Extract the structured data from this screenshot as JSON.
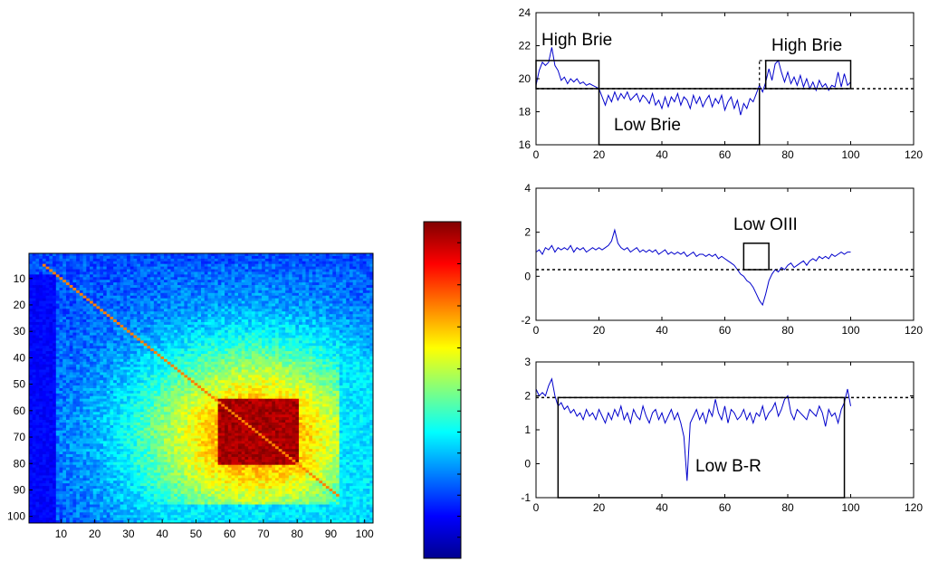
{
  "chart_data": [
    {
      "id": "heatmap",
      "type": "heatmap",
      "x_ticks": [
        10,
        20,
        30,
        40,
        50,
        60,
        70,
        80,
        90,
        100
      ],
      "y_ticks": [
        10,
        20,
        30,
        40,
        50,
        60,
        70,
        80,
        90,
        100
      ],
      "xlim": [
        1,
        102
      ],
      "ylim": [
        1,
        102
      ],
      "colormap": "jet",
      "colorbar": true,
      "hot_block": {
        "x": [
          57,
          80
        ],
        "y": [
          56,
          80
        ]
      },
      "low_band_columns": [
        1,
        8
      ]
    },
    {
      "id": "brie",
      "type": "line",
      "xlim": [
        0,
        120
      ],
      "ylim": [
        16,
        24
      ],
      "x_ticks": [
        0,
        20,
        40,
        60,
        80,
        100,
        120
      ],
      "y_ticks": [
        16,
        18,
        20,
        22,
        24
      ],
      "series_color": "#0000cc",
      "baseline": 19.4,
      "x": [
        0,
        1,
        2,
        3,
        4,
        5,
        6,
        7,
        8,
        9,
        10,
        11,
        12,
        13,
        14,
        15,
        16,
        17,
        18,
        19,
        20,
        21,
        22,
        23,
        24,
        25,
        26,
        27,
        28,
        29,
        30,
        31,
        32,
        33,
        34,
        35,
        36,
        37,
        38,
        39,
        40,
        41,
        42,
        43,
        44,
        45,
        46,
        47,
        48,
        49,
        50,
        51,
        52,
        53,
        54,
        55,
        56,
        57,
        58,
        59,
        60,
        61,
        62,
        63,
        64,
        65,
        66,
        67,
        68,
        69,
        70,
        71,
        72,
        73,
        74,
        75,
        76,
        77,
        78,
        79,
        80,
        81,
        82,
        83,
        84,
        85,
        86,
        87,
        88,
        89,
        90,
        91,
        92,
        93,
        94,
        95,
        96,
        97,
        98,
        99,
        100
      ],
      "y": [
        19.6,
        20.5,
        21.0,
        20.8,
        21.0,
        21.9,
        20.8,
        20.5,
        19.9,
        20.1,
        19.7,
        20.0,
        19.8,
        20.0,
        19.7,
        19.8,
        19.6,
        19.7,
        19.6,
        19.5,
        19.4,
        18.9,
        18.4,
        19.0,
        18.6,
        19.2,
        18.7,
        19.1,
        18.8,
        19.2,
        18.7,
        18.9,
        19.1,
        18.6,
        19.0,
        18.8,
        18.5,
        19.1,
        18.4,
        18.7,
        18.2,
        18.9,
        18.3,
        18.9,
        18.6,
        19.1,
        18.4,
        18.9,
        18.7,
        18.2,
        19.0,
        18.5,
        18.9,
        18.3,
        18.7,
        19.0,
        18.3,
        18.8,
        18.5,
        19.0,
        18.1,
        18.6,
        18.9,
        18.2,
        18.7,
        17.8,
        18.5,
        18.2,
        18.8,
        18.6,
        19.1,
        19.6,
        19.2,
        19.8,
        20.6,
        19.9,
        20.9,
        21.1,
        20.4,
        19.8,
        20.4,
        19.7,
        20.1,
        19.6,
        20.2,
        19.5,
        20.0,
        19.4,
        19.8,
        19.3,
        19.9,
        19.5,
        19.7,
        19.3,
        19.6,
        19.5,
        20.4,
        19.5,
        20.3,
        19.6,
        19.8
      ],
      "boxes": [
        {
          "label": "High Brie",
          "x": [
            0,
            20
          ],
          "y": [
            19.4,
            21.1
          ]
        },
        {
          "label": "Low Brie",
          "x": [
            20,
            71
          ],
          "y": [
            16,
            19.4
          ]
        },
        {
          "label": "High Brie",
          "x": [
            73,
            100
          ],
          "y": [
            19.4,
            21.1
          ]
        }
      ],
      "dashed_box": {
        "x": [
          71,
          73
        ],
        "y": [
          19.4,
          21.1
        ]
      }
    },
    {
      "id": "oiii",
      "type": "line",
      "xlim": [
        0,
        120
      ],
      "ylim": [
        -2,
        4
      ],
      "x_ticks": [
        0,
        20,
        40,
        60,
        80,
        100,
        120
      ],
      "y_ticks": [
        -2,
        0,
        2,
        4
      ],
      "series_color": "#0000cc",
      "baseline": 0.3,
      "x": [
        0,
        1,
        2,
        3,
        4,
        5,
        6,
        7,
        8,
        9,
        10,
        11,
        12,
        13,
        14,
        15,
        16,
        17,
        18,
        19,
        20,
        21,
        22,
        23,
        24,
        25,
        26,
        27,
        28,
        29,
        30,
        31,
        32,
        33,
        34,
        35,
        36,
        37,
        38,
        39,
        40,
        41,
        42,
        43,
        44,
        45,
        46,
        47,
        48,
        49,
        50,
        51,
        52,
        53,
        54,
        55,
        56,
        57,
        58,
        59,
        60,
        61,
        62,
        63,
        64,
        65,
        66,
        67,
        68,
        69,
        70,
        71,
        72,
        73,
        74,
        75,
        76,
        77,
        78,
        79,
        80,
        81,
        82,
        83,
        84,
        85,
        86,
        87,
        88,
        89,
        90,
        91,
        92,
        93,
        94,
        95,
        96,
        97,
        98,
        99,
        100
      ],
      "y": [
        1.1,
        1.2,
        1.0,
        1.3,
        1.2,
        1.4,
        1.1,
        1.3,
        1.2,
        1.3,
        1.2,
        1.4,
        1.1,
        1.3,
        1.2,
        1.3,
        1.1,
        1.2,
        1.3,
        1.2,
        1.3,
        1.2,
        1.3,
        1.4,
        1.6,
        2.1,
        1.5,
        1.3,
        1.2,
        1.3,
        1.1,
        1.2,
        1.3,
        1.1,
        1.2,
        1.1,
        1.2,
        1.1,
        1.2,
        1.0,
        1.1,
        1.2,
        1.0,
        1.1,
        1.0,
        1.1,
        1.0,
        1.1,
        0.9,
        1.0,
        1.1,
        0.9,
        1.0,
        1.0,
        0.9,
        1.0,
        0.9,
        1.0,
        0.8,
        0.9,
        0.8,
        0.7,
        0.6,
        0.5,
        0.3,
        0.1,
        0.0,
        -0.2,
        -0.3,
        -0.5,
        -0.8,
        -1.1,
        -1.3,
        -0.8,
        -0.2,
        0.1,
        0.3,
        0.2,
        0.4,
        0.3,
        0.5,
        0.6,
        0.4,
        0.5,
        0.6,
        0.7,
        0.5,
        0.7,
        0.8,
        0.7,
        0.9,
        0.8,
        0.9,
        0.8,
        1.0,
        0.9,
        1.0,
        1.1,
        1.0,
        1.1,
        1.1
      ],
      "boxes": [
        {
          "label": "Low OIII",
          "x": [
            66,
            74
          ],
          "y": [
            0.3,
            1.5
          ]
        }
      ]
    },
    {
      "id": "br",
      "type": "line",
      "xlim": [
        0,
        120
      ],
      "ylim": [
        -1,
        3
      ],
      "x_ticks": [
        0,
        20,
        40,
        60,
        80,
        100,
        120
      ],
      "y_ticks": [
        -1,
        0,
        1,
        2,
        3
      ],
      "series_color": "#0000cc",
      "baseline": 1.95,
      "x": [
        0,
        1,
        2,
        3,
        4,
        5,
        6,
        7,
        8,
        9,
        10,
        11,
        12,
        13,
        14,
        15,
        16,
        17,
        18,
        19,
        20,
        21,
        22,
        23,
        24,
        25,
        26,
        27,
        28,
        29,
        30,
        31,
        32,
        33,
        34,
        35,
        36,
        37,
        38,
        39,
        40,
        41,
        42,
        43,
        44,
        45,
        46,
        47,
        48,
        49,
        50,
        51,
        52,
        53,
        54,
        55,
        56,
        57,
        58,
        59,
        60,
        61,
        62,
        63,
        64,
        65,
        66,
        67,
        68,
        69,
        70,
        71,
        72,
        73,
        74,
        75,
        76,
        77,
        78,
        79,
        80,
        81,
        82,
        83,
        84,
        85,
        86,
        87,
        88,
        89,
        90,
        91,
        92,
        93,
        94,
        95,
        96,
        97,
        98,
        99,
        100
      ],
      "y": [
        2.2,
        2.0,
        2.1,
        2.0,
        2.3,
        2.5,
        2.0,
        1.7,
        1.8,
        1.6,
        1.7,
        1.5,
        1.6,
        1.4,
        1.5,
        1.3,
        1.6,
        1.4,
        1.5,
        1.3,
        1.6,
        1.4,
        1.2,
        1.5,
        1.3,
        1.6,
        1.4,
        1.7,
        1.3,
        1.5,
        1.2,
        1.6,
        1.4,
        1.3,
        1.7,
        1.4,
        1.2,
        1.5,
        1.6,
        1.3,
        1.5,
        1.2,
        1.4,
        1.6,
        1.3,
        1.5,
        1.2,
        0.8,
        -0.5,
        1.2,
        1.4,
        1.6,
        1.3,
        1.5,
        1.2,
        1.6,
        1.4,
        1.9,
        1.5,
        1.3,
        1.7,
        1.2,
        1.6,
        1.5,
        1.3,
        1.4,
        1.6,
        1.3,
        1.5,
        1.2,
        1.5,
        1.4,
        1.7,
        1.3,
        1.5,
        1.6,
        1.8,
        1.4,
        1.6,
        1.9,
        2.0,
        1.5,
        1.3,
        1.6,
        1.5,
        1.4,
        1.3,
        1.6,
        1.5,
        1.4,
        1.7,
        1.5,
        1.1,
        1.6,
        1.4,
        1.5,
        1.2,
        1.6,
        1.8,
        2.2,
        1.7
      ],
      "boxes": [
        {
          "label": "Low B-R",
          "x": [
            7,
            98
          ],
          "y": [
            -1,
            1.95
          ]
        }
      ]
    }
  ]
}
